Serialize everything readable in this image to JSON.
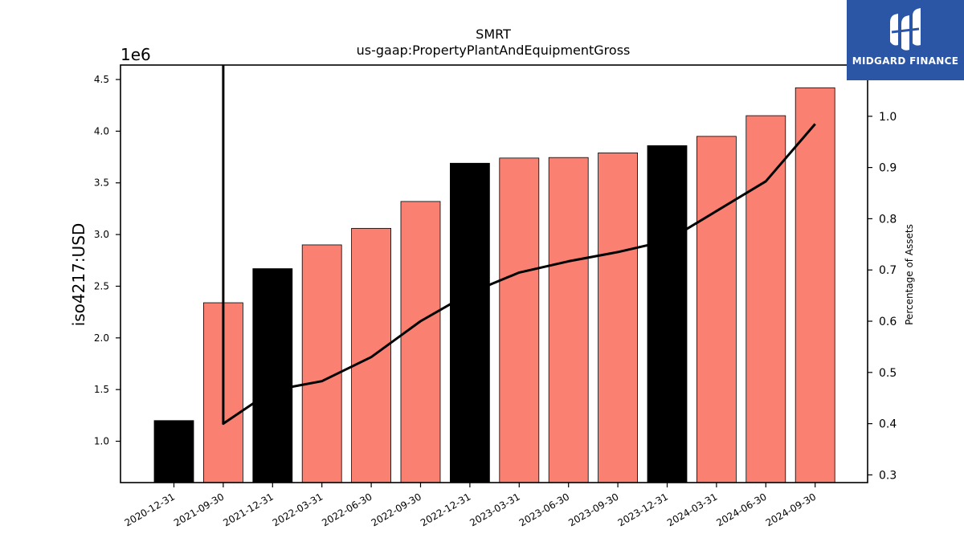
{
  "chart_data": {
    "type": "bar",
    "title": "SMRT",
    "subtitle": "us-gaap:PropertyPlantAndEquipmentGross",
    "ylabel": "iso4217:USD",
    "y_offset_label": "1e6",
    "y2label": "Percentage of Assets",
    "categories": [
      "2020-12-31",
      "2021-09-30",
      "2021-12-31",
      "2022-03-31",
      "2022-06-30",
      "2022-09-30",
      "2022-12-31",
      "2023-03-31",
      "2023-06-30",
      "2023-09-30",
      "2023-12-31",
      "2024-03-31",
      "2024-06-30",
      "2024-09-30"
    ],
    "series": [
      {
        "type": "bar",
        "values": [
          1200000,
          2340000,
          2670000,
          2900000,
          3060000,
          3320000,
          3690000,
          3740000,
          3745000,
          3790000,
          3860000,
          3950000,
          4150000,
          4420000
        ],
        "bar_colors": [
          "#000000",
          "#fa8072",
          "#000000",
          "#fa8072",
          "#fa8072",
          "#fa8072",
          "#000000",
          "#fa8072",
          "#fa8072",
          "#fa8072",
          "#000000",
          "#fa8072",
          "#fa8072",
          "#fa8072"
        ]
      },
      {
        "type": "line",
        "axis": "right",
        "values": [
          null,
          0.4,
          0.465,
          0.483,
          0.53,
          0.6,
          0.655,
          0.695,
          0.717,
          0.735,
          0.757,
          0.815,
          0.873,
          0.985
        ],
        "color": "#000000"
      }
    ],
    "ylim": [
      600000,
      4640000
    ],
    "yticks": [
      1.0,
      1.5,
      2.0,
      2.5,
      3.0,
      3.5,
      4.0,
      4.5
    ],
    "y2lim": [
      0.285,
      1.1
    ],
    "y2ticks": [
      0.3,
      0.4,
      0.5,
      0.6,
      0.7,
      0.8,
      0.9,
      1.0
    ]
  },
  "logo": {
    "name": "MIDGARD FINANCE"
  }
}
